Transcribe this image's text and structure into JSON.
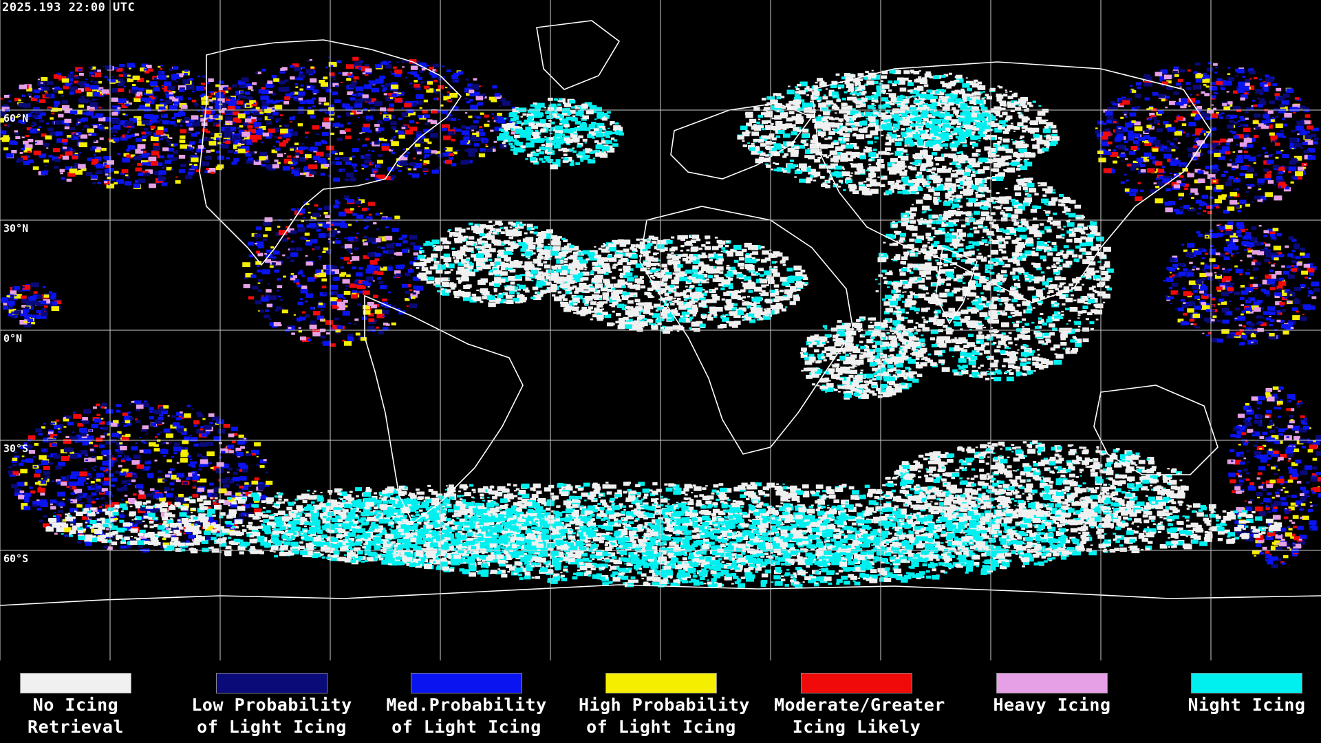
{
  "header": {
    "timestamp": "2025.193 22:00 UTC"
  },
  "lat_labels": [
    "60°N",
    "30°N",
    "0°N",
    "30°S",
    "60°S"
  ],
  "legend": [
    {
      "line1": "No Icing",
      "line2": "Retrieval",
      "color": "#f0f0f0"
    },
    {
      "line1": "Low Probability",
      "line2": "of Light Icing",
      "color": "#0a0a78"
    },
    {
      "line1": "Med.Probability",
      "line2": "of Light Icing",
      "color": "#0a14f0"
    },
    {
      "line1": "High Probability",
      "line2": "of Light Icing",
      "color": "#f5ee00"
    },
    {
      "line1": "Moderate/Greater",
      "line2": "Icing Likely",
      "color": "#f00a0a"
    },
    {
      "line1": "Heavy Icing",
      "line2": "",
      "color": "#e6a0e6"
    },
    {
      "line1": "Night Icing",
      "line2": "",
      "color": "#00f0f0"
    }
  ]
}
